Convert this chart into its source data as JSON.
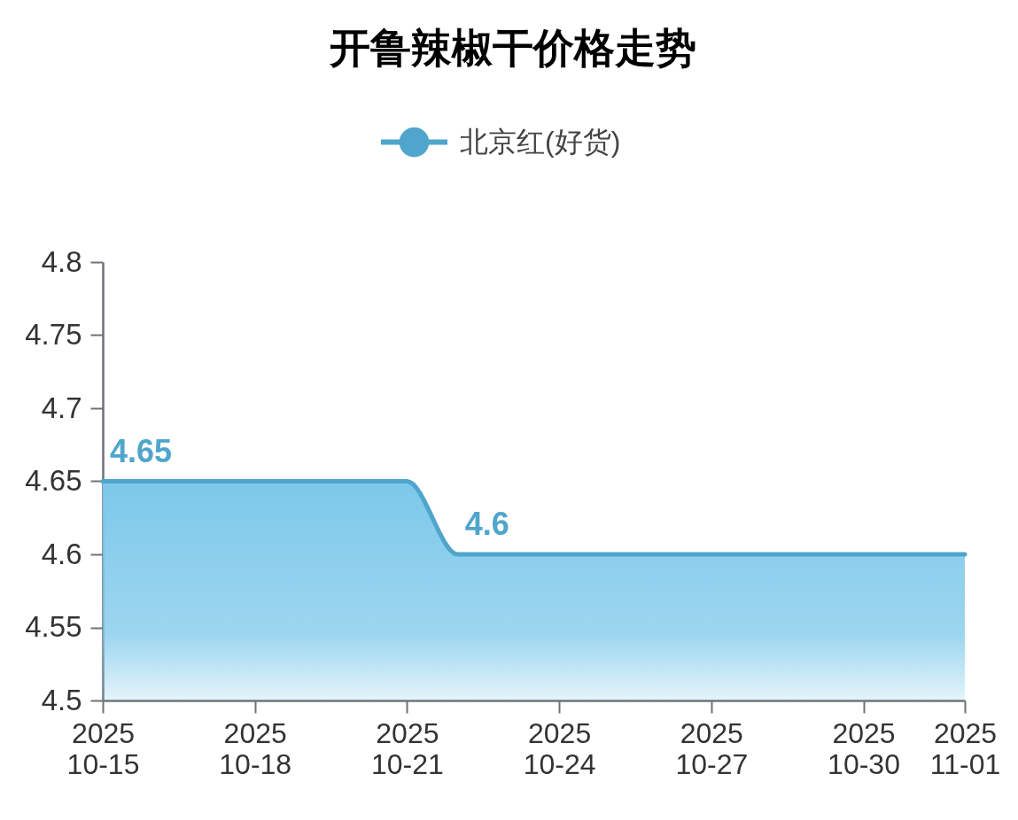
{
  "chart_data": {
    "type": "area",
    "title": "开鲁辣椒干价格走势",
    "legend": "top",
    "x": [
      "2025-10-15",
      "2025-10-21",
      "2025-10-22",
      "2025-11-01"
    ],
    "series": [
      {
        "name": "北京红(好货)",
        "color": "#4fa5cb",
        "values": [
          4.65,
          4.65,
          4.6,
          4.6
        ],
        "value_labels": [
          "4.65",
          null,
          "4.6",
          null
        ]
      }
    ],
    "xlim": [
      "2025-10-15",
      "2025-11-01"
    ],
    "xticks": [
      {
        "value": "2025-10-15",
        "label": "2025\n10-15"
      },
      {
        "value": "2025-10-18",
        "label": "2025\n10-18"
      },
      {
        "value": "2025-10-21",
        "label": "2025\n10-21"
      },
      {
        "value": "2025-10-24",
        "label": "2025\n10-24"
      },
      {
        "value": "2025-10-27",
        "label": "2025\n10-27"
      },
      {
        "value": "2025-10-30",
        "label": "2025\n10-30"
      },
      {
        "value": "2025-11-01",
        "label": "2025\n11-01"
      }
    ],
    "ylim": [
      4.5,
      4.8
    ],
    "yticks": [
      4.5,
      4.55,
      4.6,
      4.65,
      4.7,
      4.75,
      4.8
    ]
  }
}
